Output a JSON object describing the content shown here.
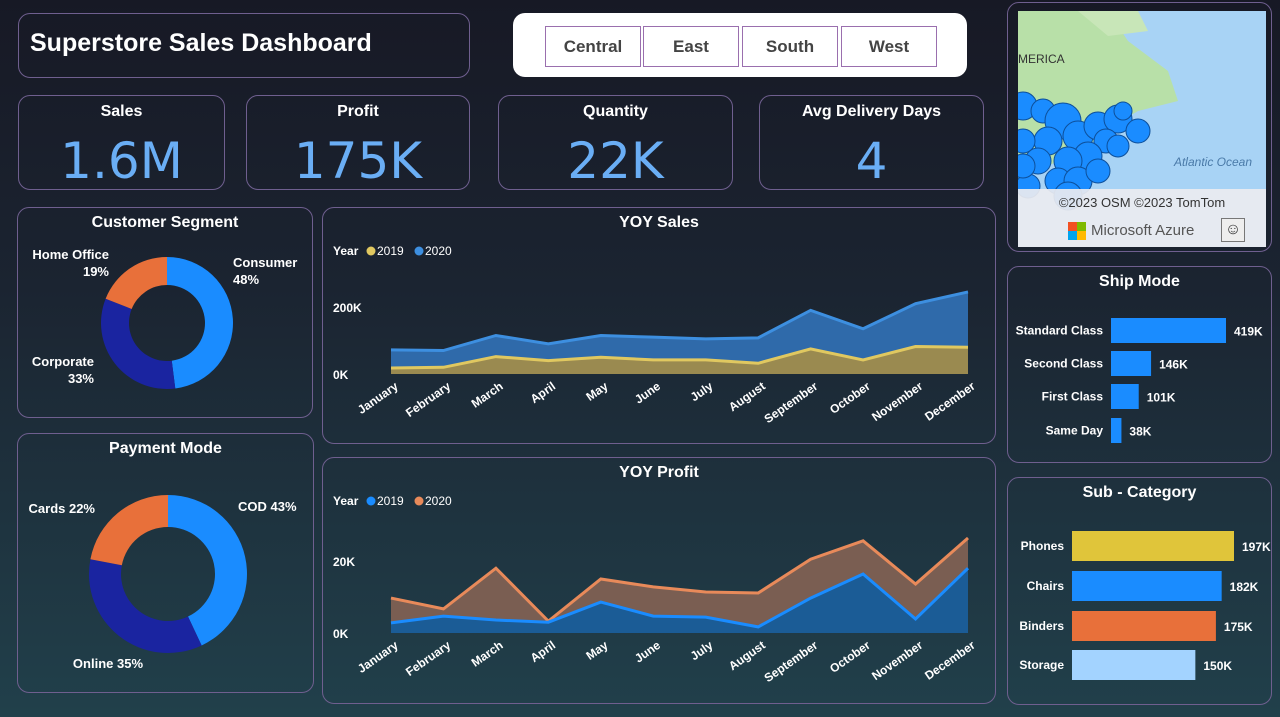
{
  "title": "Superstore Sales Dashboard",
  "region_filter": [
    "Central",
    "East",
    "South",
    "West"
  ],
  "kpis": [
    {
      "label": "Sales",
      "value": "1.6M"
    },
    {
      "label": "Profit",
      "value": "175K"
    },
    {
      "label": "Quantity",
      "value": "22K"
    },
    {
      "label": "Avg Delivery Days",
      "value": "4"
    }
  ],
  "map": {
    "label": "MERICA",
    "ocean": "Atlantic Ocean",
    "attribution": "©2023 OSM  ©2023 TomTom",
    "brand": "Microsoft Azure",
    "feedback_icon": "smiley-icon"
  },
  "colors": {
    "blue": "#1a8cff",
    "dark_blue": "#1a24a0",
    "orange": "#e8703a",
    "yellow": "#e0c53a",
    "light_blue": "#a3d3ff",
    "profit_2020": "#e88a5a"
  },
  "chart_data": [
    {
      "type": "pie",
      "title": "Customer Segment",
      "donut": true,
      "categories": [
        "Consumer",
        "Corporate",
        "Home Office"
      ],
      "values": [
        48,
        33,
        19
      ],
      "labels": [
        "48%",
        "33%",
        "19%"
      ],
      "colors": [
        "#1a8cff",
        "#1a24a0",
        "#e8703a"
      ]
    },
    {
      "type": "pie",
      "title": "Payment Mode",
      "donut": true,
      "categories": [
        "COD",
        "Online",
        "Cards"
      ],
      "values": [
        43,
        35,
        22
      ],
      "labels": [
        "COD 43%",
        "Online 35%",
        "Cards 22%"
      ],
      "colors": [
        "#1a8cff",
        "#1a24a0",
        "#e8703a"
      ]
    },
    {
      "type": "area",
      "title": "YOY Sales",
      "legend_title": "Year",
      "legend_placement": "top-left",
      "categories": [
        "January",
        "February",
        "March",
        "April",
        "May",
        "June",
        "July",
        "August",
        "September",
        "October",
        "November",
        "December"
      ],
      "yticks": [
        "0K",
        "200K"
      ],
      "ytick_values": [
        0,
        200
      ],
      "yunit": "K",
      "grid": false,
      "series": [
        {
          "name": "2020",
          "color": "#3d8fe0",
          "values": [
            72,
            70,
            115,
            90,
            115,
            110,
            105,
            108,
            190,
            135,
            210,
            245
          ]
        },
        {
          "name": "2019",
          "color": "#e0c860",
          "values": [
            18,
            20,
            52,
            40,
            50,
            42,
            42,
            32,
            75,
            42,
            82,
            80
          ]
        }
      ],
      "legend": [
        {
          "name": "2019",
          "color": "#e0c860"
        },
        {
          "name": "2020",
          "color": "#3d8fe0"
        }
      ]
    },
    {
      "type": "area",
      "title": "YOY Profit",
      "legend_title": "Year",
      "legend_placement": "top-left",
      "categories": [
        "January",
        "February",
        "March",
        "April",
        "May",
        "June",
        "July",
        "August",
        "September",
        "October",
        "November",
        "December"
      ],
      "yticks": [
        "0K",
        "20K"
      ],
      "ytick_values": [
        0,
        20
      ],
      "yunit": "K",
      "grid": false,
      "series": [
        {
          "name": "2020",
          "color": "#e88a5a",
          "values": [
            9.7,
            6.7,
            18,
            3.3,
            15,
            12.8,
            11.4,
            11.1,
            20.5,
            25.6,
            13.6,
            26.4
          ]
        },
        {
          "name": "2019",
          "color": "#1a8cff",
          "values": [
            2.8,
            4.7,
            3.6,
            3,
            8.6,
            4.7,
            4.4,
            1.7,
            9.7,
            16.4,
            3.9,
            18
          ]
        }
      ],
      "legend": [
        {
          "name": "2019",
          "color": "#1a8cff"
        },
        {
          "name": "2020",
          "color": "#e88a5a"
        }
      ]
    },
    {
      "type": "bar",
      "orientation": "horizontal",
      "title": "Ship Mode",
      "categories": [
        "Standard Class",
        "Second Class",
        "First Class",
        "Same Day"
      ],
      "values": [
        419,
        146,
        101,
        38
      ],
      "labels": [
        "419K",
        "146K",
        "101K",
        "38K"
      ],
      "colors": [
        "#1a8cff",
        "#1a8cff",
        "#1a8cff",
        "#1a8cff"
      ]
    },
    {
      "type": "bar",
      "orientation": "horizontal",
      "title": "Sub - Category",
      "categories": [
        "Phones",
        "Chairs",
        "Binders",
        "Storage"
      ],
      "values": [
        197,
        182,
        175,
        150
      ],
      "labels": [
        "197K",
        "182K",
        "175K",
        "150K"
      ],
      "colors": [
        "#e0c53a",
        "#1a8cff",
        "#e8703a",
        "#a3d3ff"
      ]
    }
  ]
}
